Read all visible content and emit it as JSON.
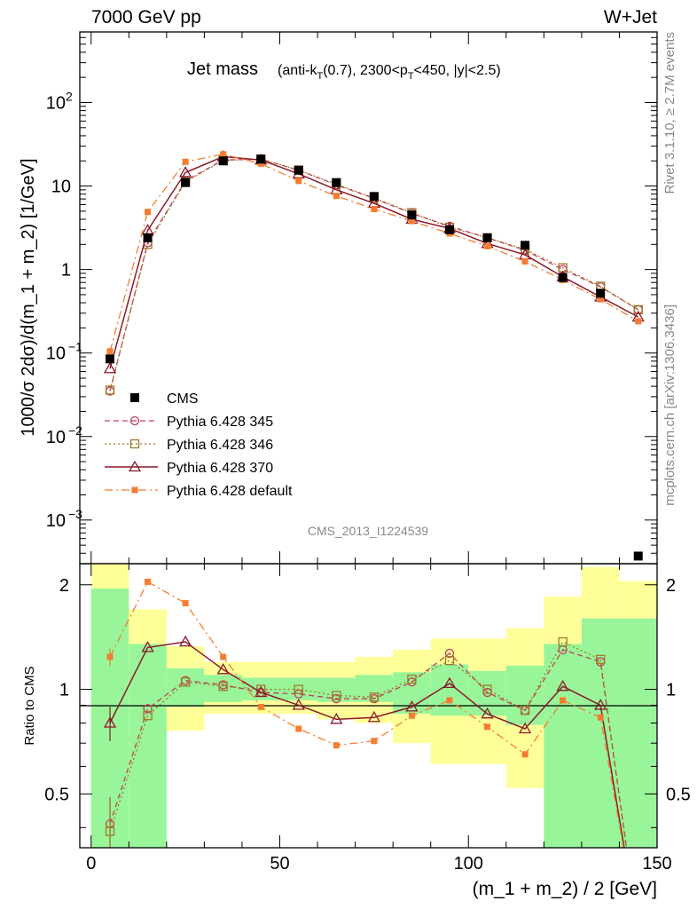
{
  "header": {
    "energy_label": "7000 GeV pp",
    "process_label": "W+Jet"
  },
  "side_labels": {
    "rivet": "Rivet 3.1.10, ≥ 2.7M events",
    "mcplots": "mcplots.cern.ch [arXiv:1306.3436]"
  },
  "watermark": "CMS_2013_I1224539",
  "chart_data": [
    {
      "type": "line",
      "panel": "main",
      "title_main": "Jet mass",
      "title_sub": "(anti-k_T(0.7), 2300<p_T<450, |y|<2.5)",
      "ylabel": "1000/σ 2dσ)/d(m_1 + m_2) [1/GeV]",
      "yscale": "log",
      "ylim": [
        0.0003,
        700
      ],
      "xlim": [
        -3,
        150
      ],
      "y_ticks": [
        "10^-3",
        "10^-2",
        "10^-1",
        "1",
        "10",
        "10^2"
      ],
      "legend_position": "middle-left",
      "x": [
        5,
        15,
        25,
        35,
        45,
        55,
        65,
        75,
        85,
        95,
        105,
        115,
        125,
        135,
        145
      ],
      "series": [
        {
          "name": "CMS",
          "color": "#000000",
          "marker": "filled-square",
          "values": [
            0.085,
            2.4,
            11.0,
            20.0,
            21.0,
            15.5,
            11.0,
            7.5,
            4.5,
            3.0,
            2.4,
            1.95,
            0.8,
            0.52,
            0.00037
          ],
          "errors": [
            0.005,
            0.1,
            0.3,
            0.3,
            0.3,
            0.3,
            0.2,
            0.15,
            0.1,
            0.08,
            0.08,
            0.08,
            0.05,
            0.04,
            2e-05
          ]
        },
        {
          "name": "Pythia 6.428 345",
          "color": "#c0405a",
          "marker": "open-circle",
          "dash": "dashed",
          "values": [
            0.035,
            2.1,
            11.5,
            20.5,
            21.0,
            15.5,
            10.3,
            7.1,
            4.7,
            3.3,
            2.4,
            1.7,
            1.0,
            0.62,
            0.33
          ]
        },
        {
          "name": "Pythia 6.428 346",
          "color": "#a07828",
          "marker": "open-square",
          "dash": "dotted",
          "values": [
            0.036,
            2.0,
            11.2,
            20.3,
            21.0,
            15.5,
            10.5,
            7.2,
            4.8,
            3.2,
            2.4,
            1.75,
            1.05,
            0.63,
            0.33
          ]
        },
        {
          "name": "Pythia 6.428 370",
          "color": "#8b1a2b",
          "marker": "open-triangle",
          "dash": "solid",
          "values": [
            0.065,
            2.95,
            14.5,
            22.5,
            20.5,
            14.0,
            9.0,
            6.2,
            4.0,
            3.1,
            2.05,
            1.5,
            0.82,
            0.47,
            0.27
          ]
        },
        {
          "name": "Pythia 6.428 default",
          "color": "#f57c30",
          "marker": "filled-small-square",
          "dash": "dashdot",
          "values": [
            0.105,
            4.9,
            19.5,
            24.0,
            18.5,
            11.5,
            7.6,
            5.3,
            3.8,
            2.7,
            1.9,
            1.25,
            0.75,
            0.44,
            0.24
          ]
        }
      ]
    },
    {
      "type": "line",
      "panel": "ratio",
      "ylabel": "Ratio to CMS",
      "xlabel": "(m_1 + m_2) / 2 [GeV]",
      "yscale": "log",
      "ylim": [
        0.35,
        2.3
      ],
      "xlim": [
        -3,
        150
      ],
      "x_ticks": [
        0,
        50,
        100,
        150
      ],
      "y_ticks": [
        0.5,
        1,
        2
      ],
      "reference_line": 1,
      "bins": [
        [
          0,
          10
        ],
        [
          10,
          20
        ],
        [
          20,
          30
        ],
        [
          30,
          40
        ],
        [
          40,
          50
        ],
        [
          50,
          60
        ],
        [
          60,
          70
        ],
        [
          70,
          80
        ],
        [
          80,
          90
        ],
        [
          90,
          100
        ],
        [
          100,
          110
        ],
        [
          110,
          120
        ],
        [
          120,
          130
        ],
        [
          130,
          140
        ],
        [
          140,
          150
        ]
      ],
      "band_inner": [
        [
          0.3,
          1.95
        ],
        [
          0.3,
          1.35
        ],
        [
          0.89,
          1.15
        ],
        [
          0.92,
          1.1
        ],
        [
          0.93,
          1.08
        ],
        [
          0.93,
          1.08
        ],
        [
          0.92,
          1.08
        ],
        [
          0.92,
          1.1
        ],
        [
          0.85,
          1.12
        ],
        [
          0.84,
          1.18
        ],
        [
          0.84,
          1.13
        ],
        [
          0.79,
          1.17
        ],
        [
          0.3,
          1.35
        ],
        [
          0.3,
          1.6
        ],
        [
          0.3,
          1.6
        ]
      ],
      "band_outer": [
        [
          0.3,
          2.3
        ],
        [
          0.3,
          1.7
        ],
        [
          0.76,
          1.33
        ],
        [
          0.85,
          1.2
        ],
        [
          0.85,
          1.2
        ],
        [
          0.85,
          1.2
        ],
        [
          0.82,
          1.2
        ],
        [
          0.8,
          1.24
        ],
        [
          0.7,
          1.3
        ],
        [
          0.61,
          1.4
        ],
        [
          0.61,
          1.4
        ],
        [
          0.52,
          1.5
        ],
        [
          0.3,
          1.85
        ],
        [
          0.3,
          2.25
        ],
        [
          0.3,
          2.05
        ]
      ],
      "series": [
        {
          "name": "Pythia 6.428 345",
          "color": "#c0405a",
          "marker": "open-circle",
          "dash": "dashed",
          "values": [
            0.41,
            0.88,
            1.06,
            1.03,
            0.98,
            0.97,
            0.94,
            0.94,
            1.05,
            1.27,
            0.98,
            0.87,
            1.3,
            1.2,
            0.2
          ],
          "errors": [
            0.08,
            0,
            0,
            0,
            0,
            0,
            0,
            0,
            0,
            0,
            0,
            0,
            0,
            0,
            0
          ]
        },
        {
          "name": "Pythia 6.428 346",
          "color": "#a07828",
          "marker": "open-square",
          "dash": "dotted",
          "values": [
            0.39,
            0.84,
            1.05,
            1.02,
            1.0,
            1.0,
            0.96,
            0.95,
            1.07,
            1.21,
            1.0,
            0.87,
            1.37,
            1.22,
            0.2
          ],
          "errors": [
            0.08,
            0,
            0,
            0,
            0,
            0,
            0,
            0,
            0,
            0,
            0,
            0,
            0,
            0,
            0
          ]
        },
        {
          "name": "Pythia 6.428 370",
          "color": "#8b1a2b",
          "marker": "open-triangle",
          "dash": "solid",
          "values": [
            0.8,
            1.32,
            1.37,
            1.14,
            0.98,
            0.9,
            0.82,
            0.83,
            0.89,
            1.04,
            0.85,
            0.77,
            1.02,
            0.9,
            0.2
          ],
          "errors": [
            0.09,
            0,
            0,
            0,
            0,
            0,
            0,
            0,
            0,
            0,
            0,
            0,
            0,
            0,
            0
          ]
        },
        {
          "name": "Pythia 6.428 default",
          "color": "#f57c30",
          "marker": "filled-small-square",
          "dash": "dashdot",
          "values": [
            1.24,
            2.04,
            1.77,
            1.24,
            0.89,
            0.77,
            0.69,
            0.71,
            0.84,
            0.93,
            0.78,
            0.65,
            0.93,
            0.83,
            0.2
          ],
          "errors": [
            0.07,
            0,
            0,
            0,
            0,
            0,
            0,
            0,
            0,
            0,
            0,
            0,
            0,
            0,
            0
          ]
        }
      ]
    }
  ]
}
